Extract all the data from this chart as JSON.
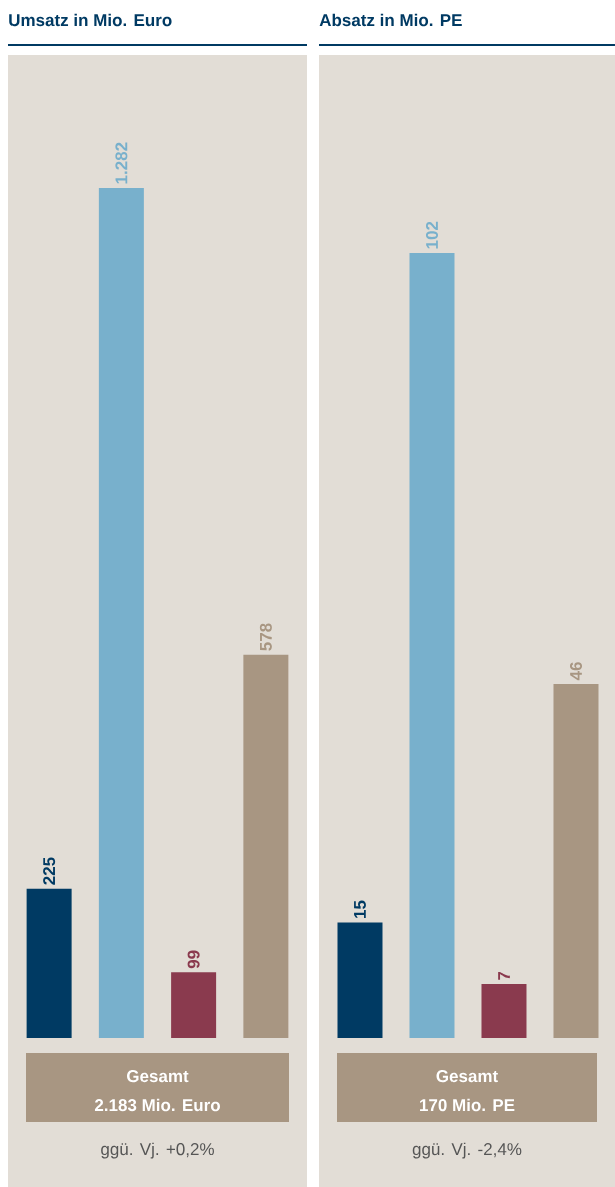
{
  "chart_data": [
    {
      "type": "bar",
      "title": "Umsatz in Mio. Euro",
      "categories": [
        null,
        null,
        null,
        null
      ],
      "values": [
        225,
        1282,
        99,
        578
      ],
      "colors": [
        "#003a63",
        "#78b0cc",
        "#8a3a4e",
        "#a89682"
      ],
      "value_labels": [
        "225",
        "1.282",
        "99",
        "578"
      ],
      "annotations": [
        "Gesamt",
        "2.183 Mio. Euro",
        "ggü. Vj. +0,2%"
      ]
    },
    {
      "type": "bar",
      "title": "Absatz in Mio. PE",
      "categories": [
        null,
        null,
        null,
        null
      ],
      "values": [
        15,
        102,
        7,
        46
      ],
      "colors": [
        "#003a63",
        "#78b0cc",
        "#8a3a4e",
        "#a89682"
      ],
      "value_labels": [
        "15",
        "102",
        "7",
        "46"
      ],
      "annotations": [
        "Gesamt",
        "170 Mio. PE",
        "ggü. Vj. -2,4%"
      ]
    }
  ]
}
